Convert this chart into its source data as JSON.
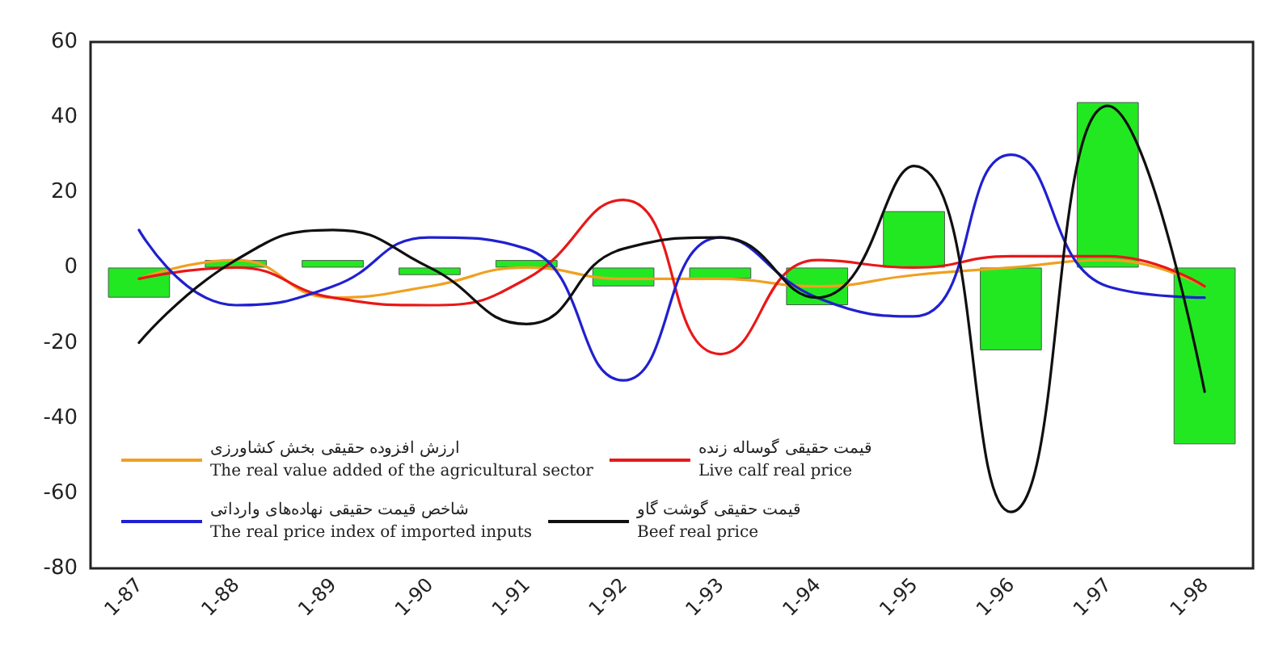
{
  "chart_data": {
    "type": "bar",
    "categories": [
      "1-87",
      "1-88",
      "1-89",
      "1-90",
      "1-91",
      "1-92",
      "1-93",
      "1-94",
      "1-95",
      "1-96",
      "1-97",
      "1-98"
    ],
    "series": [
      {
        "color": "#22e822",
        "values": [
          -8,
          2,
          2,
          -2,
          2,
          -5,
          -3,
          -10,
          15,
          -22,
          44,
          -47
        ]
      },
      {
        "type": "line",
        "name": "ارزش افزوده حقیقی بخش کشاورزی\nThe real value added of the agricultural sector",
        "color": "#f0a020",
        "values": [
          -3,
          2,
          -8,
          -5,
          0,
          -3,
          -3,
          -5,
          -2,
          0,
          2,
          -5
        ]
      },
      {
        "type": "line",
        "name": "قیمت حقیقی گوساله زنده\nLive calf real price",
        "color": "#e81818",
        "values": [
          -3,
          0,
          -8,
          -10,
          -3,
          18,
          -23,
          2,
          0,
          3,
          3,
          -5
        ]
      },
      {
        "type": "line",
        "name": "شاخص قیمت حقیقی نهاده‌های وارداتی\nThe real price index of imported inputs",
        "color": "#2020d0",
        "values": [
          10,
          -10,
          -5,
          8,
          5,
          -30,
          8,
          -8,
          -13,
          30,
          -5,
          -8
        ]
      },
      {
        "type": "line",
        "name": "قیمت حقیقی گوشت گاو\nBeef real price",
        "color": "#101010",
        "values": [
          -20,
          2,
          10,
          0,
          -15,
          5,
          8,
          -8,
          27,
          -65,
          43,
          -33
        ]
      }
    ],
    "ylim": [
      -80,
      60
    ],
    "yticks": [
      -80,
      -60,
      -40,
      -20,
      0,
      20,
      40,
      60
    ],
    "grid": false,
    "legend": "bottom left",
    "marker": "none",
    "line_style": "solid"
  }
}
